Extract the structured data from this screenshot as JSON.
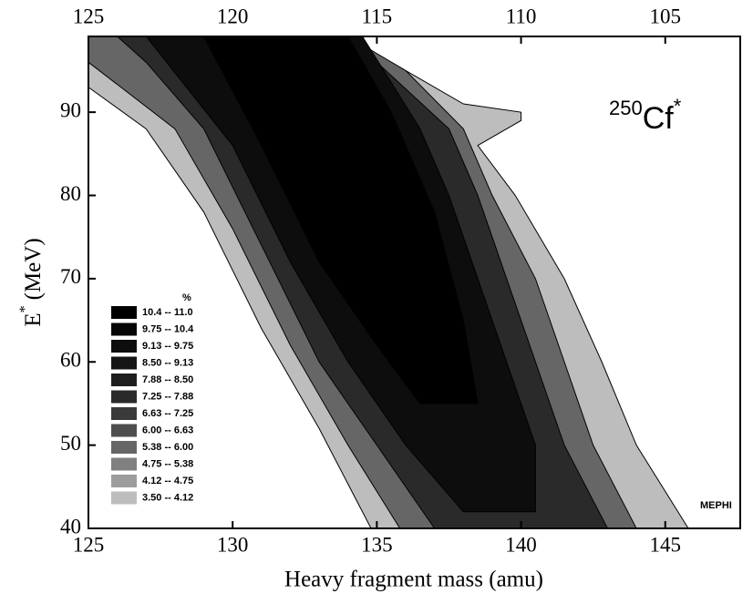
{
  "chart_data": {
    "type": "contour",
    "xlabel": "Heavy fragment mass (amu)",
    "ylabel": {
      "symbol": "E",
      "sup": "*",
      "unit": "(MeV)"
    },
    "annotation": {
      "mass": "250",
      "element": "Cf",
      "sup": "*"
    },
    "credit": "MEPHI",
    "legend_title": "%",
    "xlim": [
      125,
      147.6
    ],
    "xticks": [
      125,
      130,
      135,
      140,
      145
    ],
    "x2lim": [
      125,
      102.4
    ],
    "x2ticks": [
      125,
      120,
      115,
      110,
      105
    ],
    "ylim": [
      40,
      99.1
    ],
    "yticks": [
      40,
      50,
      60,
      70,
      80,
      90
    ],
    "series": [
      {
        "name": "10.4  --  11.0",
        "color": "#000000",
        "x": [
          129,
          131,
          133,
          135,
          136.5,
          138.5,
          138,
          137,
          135.5,
          134
        ],
        "y": [
          99.1,
          86,
          72,
          62,
          55,
          55,
          65,
          78,
          90,
          99.1
        ]
      },
      {
        "name": "9.75  --  10.4",
        "color": "#060606"
      },
      {
        "name": "9.13  --  9.75",
        "color": "#0d0d0d",
        "x": [
          127,
          130,
          132,
          134,
          136,
          138,
          140.5,
          140.5,
          139.5,
          138.5,
          137.5,
          136.5,
          134.5
        ],
        "y": [
          99.1,
          86,
          72,
          60,
          50,
          42,
          42,
          50,
          60,
          70,
          80,
          88,
          99.1
        ]
      },
      {
        "name": "8.50  --  9.13",
        "color": "#151515"
      },
      {
        "name": "7.88  --  8.50",
        "color": "#1e1e1e"
      },
      {
        "name": "7.25  --  7.88",
        "color": "#2a2a2a",
        "x": [
          126,
          127,
          129,
          131,
          133,
          135,
          137,
          143,
          141.5,
          140.5,
          139.5,
          138.5,
          137.5,
          135,
          134
        ],
        "y": [
          99.1,
          96,
          88,
          74,
          60,
          50,
          40,
          40,
          50,
          60,
          70,
          80,
          88,
          96,
          99.1
        ]
      },
      {
        "name": "6.63  --  7.25",
        "color": "#3a3a3a"
      },
      {
        "name": "6.00  --  6.63",
        "color": "#4e4e4e"
      },
      {
        "name": "5.38  --  6.00",
        "color": "#666666",
        "x": [
          125,
          125,
          128,
          130,
          132,
          134,
          135.8,
          144,
          142.5,
          141.5,
          140.5,
          139,
          138,
          136,
          134
        ],
        "y": [
          99.1,
          96,
          88,
          76,
          62,
          50,
          40,
          40,
          50,
          60,
          70,
          80,
          88,
          95,
          99.1
        ]
      },
      {
        "name": "4.75  --  5.38",
        "color": "#808080"
      },
      {
        "name": "4.12  --  4.75",
        "color": "#9c9c9c"
      },
      {
        "name": "3.50  --  4.12",
        "color": "#bdbdbd",
        "x": [
          125,
          125,
          127,
          129,
          131,
          133,
          134.8,
          145.8,
          144,
          142.8,
          141.5,
          139.8,
          138.5,
          140,
          140,
          138,
          135.5,
          133.5
        ],
        "y": [
          99.1,
          93,
          88,
          78,
          64,
          52,
          40,
          40,
          50,
          60,
          70,
          80,
          86,
          89,
          90,
          91,
          96,
          99.1
        ]
      }
    ]
  }
}
